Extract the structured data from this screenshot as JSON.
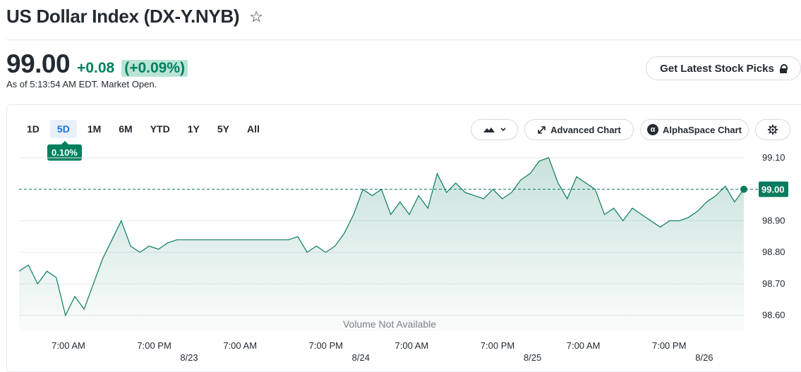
{
  "header": {
    "title": "US Dollar Index (DX-Y.NYB)",
    "star_icon": "star-outline-icon"
  },
  "quote": {
    "price": "99.00",
    "change": "+0.08",
    "change_pct": "(+0.09%)",
    "as_of": "As of 5:13:54 AM EDT. Market Open."
  },
  "promo": {
    "picks_label": "Get Latest Stock Picks",
    "picks_icon": "lock-icon"
  },
  "toolbar": {
    "ranges": [
      "1D",
      "5D",
      "1M",
      "6M",
      "YTD",
      "1Y",
      "5Y",
      "All"
    ],
    "active_range": "5D",
    "range_tooltip": "0.10%",
    "chart_type_icon": "mountain-chart-icon",
    "advanced_chart_label": "Advanced Chart",
    "alphaspace_label": "AlphaSpace Chart",
    "settings_icon": "gear-icon"
  },
  "colors": {
    "line": "#0a7b5f",
    "accent_green": "#00805f",
    "grid": "#e6e9ec"
  },
  "chart_data": {
    "type": "area",
    "y_ticks": [
      "99.10",
      "99.00",
      "98.90",
      "98.80",
      "98.70",
      "98.60"
    ],
    "ylim": [
      98.55,
      99.12
    ],
    "current_value": "99.00",
    "current_value_reference_line": 99.0,
    "x_tick_labels": [
      "7:00 AM",
      "7:00 PM",
      "7:00 AM",
      "7:00 PM",
      "7:00 AM",
      "7:00 PM",
      "7:00 AM",
      "7:00 PM"
    ],
    "date_labels": [
      "8/23",
      "8/24",
      "8/25",
      "8/26"
    ],
    "annotation": "Volume Not Available",
    "series": [
      {
        "values": [
          98.74,
          98.76,
          98.7,
          98.74,
          98.72,
          98.6,
          98.66,
          98.62,
          98.7,
          98.78,
          98.84,
          98.9,
          98.82,
          98.8,
          98.82,
          98.81,
          98.83,
          98.84,
          98.84,
          98.84,
          98.84,
          98.84,
          98.84,
          98.84,
          98.84,
          98.84,
          98.84,
          98.84,
          98.84,
          98.84,
          98.85,
          98.8,
          98.82,
          98.8,
          98.82,
          98.86,
          98.92,
          99.0,
          98.98,
          99.0,
          98.92,
          98.96,
          98.92,
          98.98,
          98.94,
          99.05,
          98.99,
          99.02,
          98.99,
          98.98,
          98.97,
          99.0,
          98.97,
          98.99,
          99.03,
          99.05,
          99.09,
          99.1,
          99.02,
          98.97,
          99.04,
          99.02,
          99.0,
          98.92,
          98.94,
          98.9,
          98.94,
          98.92,
          98.9,
          98.88,
          98.9,
          98.9,
          98.91,
          98.93,
          98.96,
          98.98,
          99.01,
          98.96,
          99.0
        ]
      }
    ]
  }
}
